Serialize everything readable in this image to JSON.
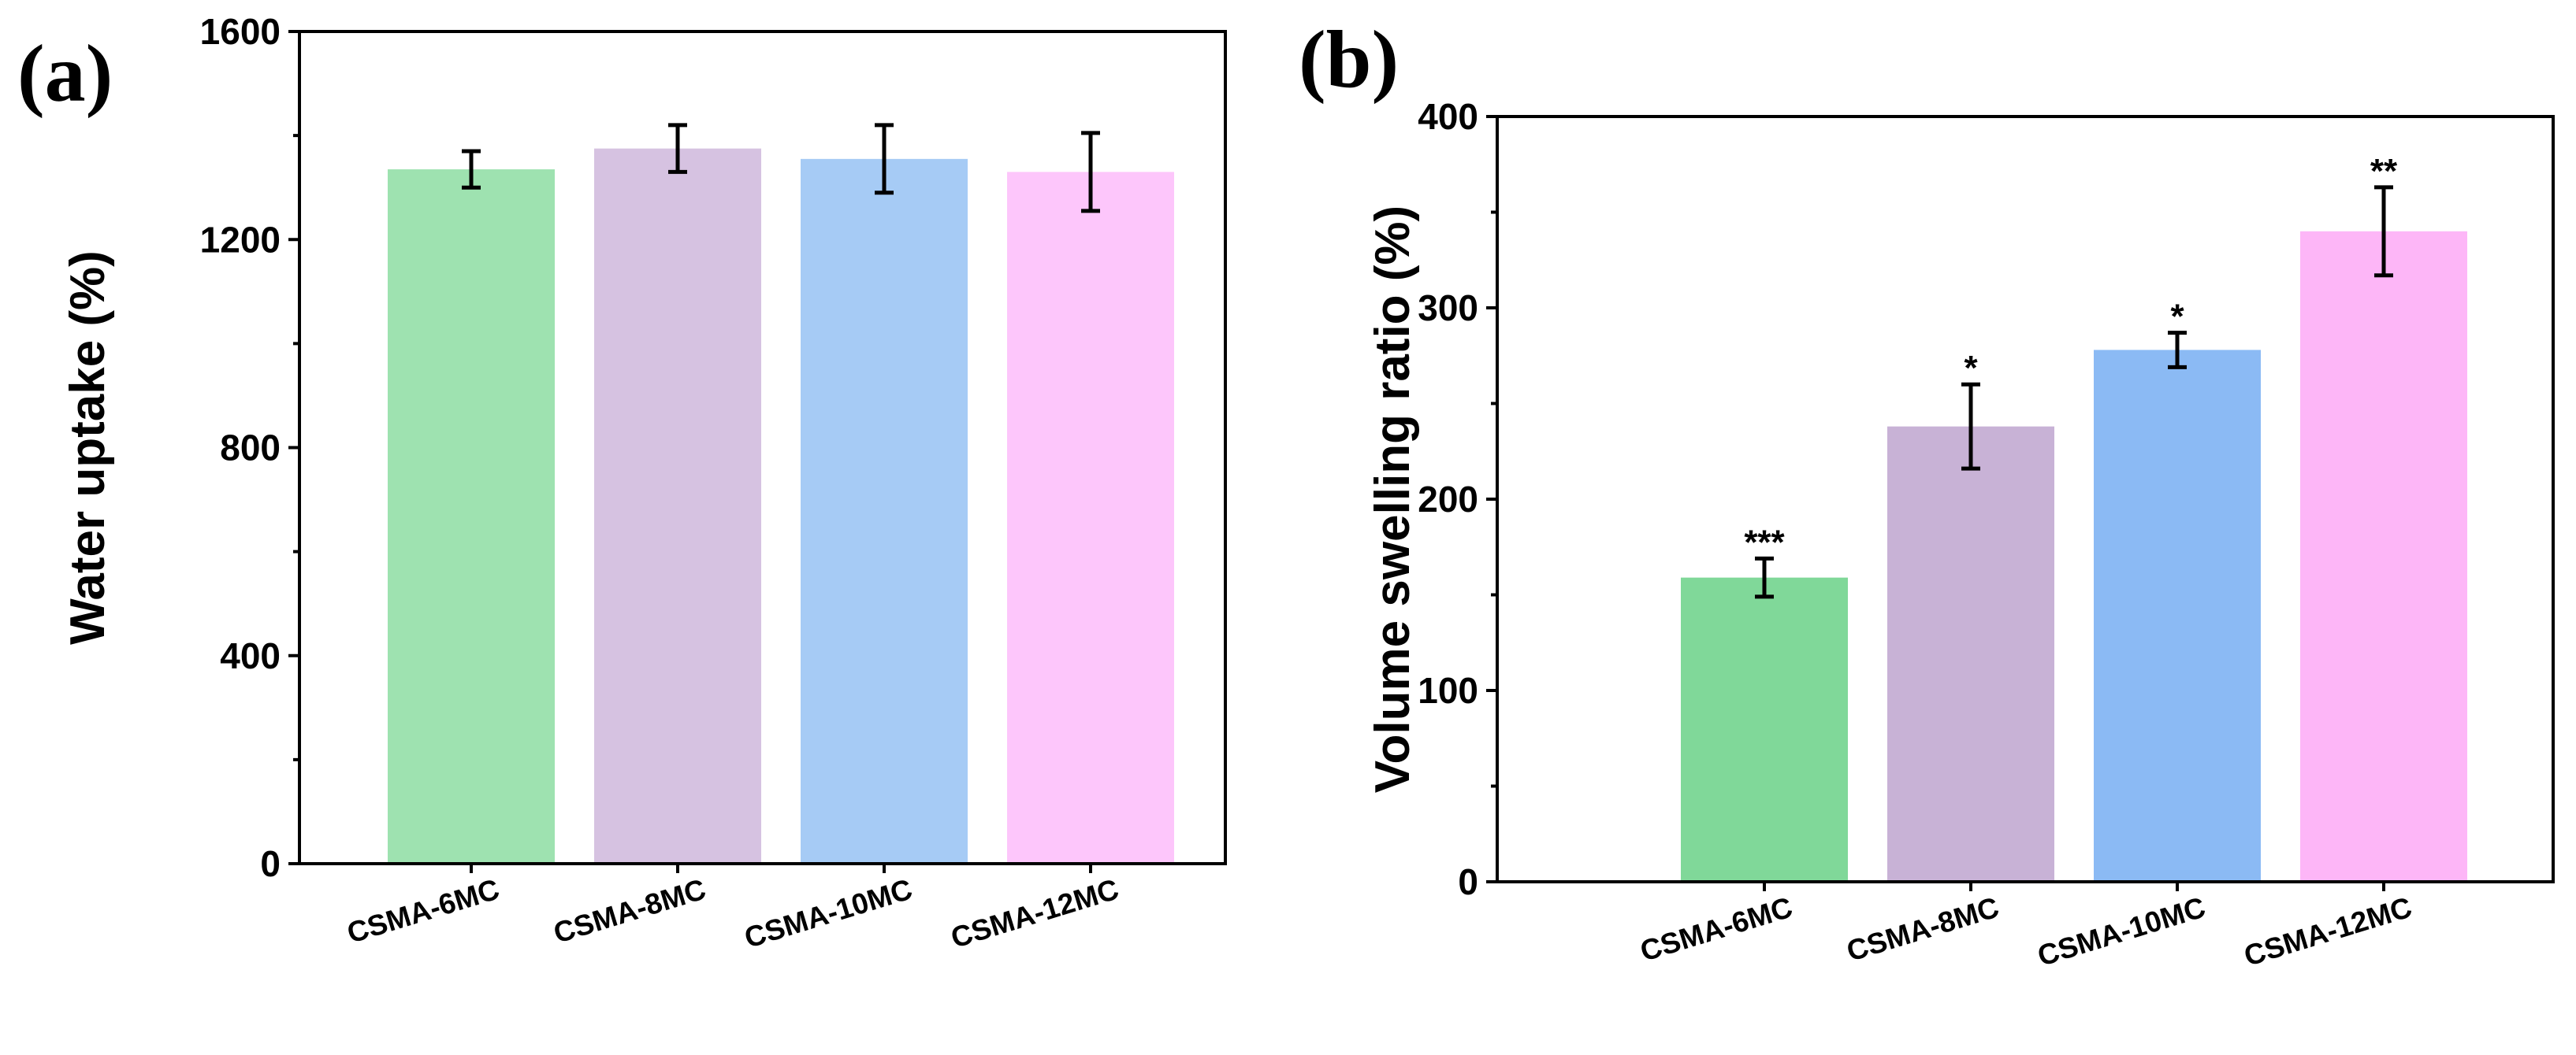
{
  "chart_data": [
    {
      "panel": "(a)",
      "type": "bar",
      "categories": [
        "CSMA-6MC",
        "CSMA-8MC",
        "CSMA-10MC",
        "CSMA-12MC"
      ],
      "values": [
        1335,
        1375,
        1355,
        1330
      ],
      "errors": [
        35,
        45,
        65,
        75
      ],
      "colors": [
        "#9ee2b0",
        "#d6c2e1",
        "#a6cbf5",
        "#fdc6fb"
      ],
      "annotations": [
        "",
        "",
        "",
        ""
      ],
      "xlabel": "",
      "ylabel": "Water uptake (%)",
      "ylim": [
        0,
        1600
      ],
      "yticks": [
        0,
        400,
        800,
        1200,
        1600
      ],
      "tick_labels": [
        "0",
        "400",
        "800",
        "1200",
        "1600"
      ],
      "minor_ticks": true,
      "grid": false
    },
    {
      "panel": "(b)",
      "type": "bar",
      "categories": [
        "CSMA-6MC",
        "CSMA-8MC",
        "CSMA-10MC",
        "CSMA-12MC"
      ],
      "values": [
        159,
        238,
        278,
        340
      ],
      "errors": [
        10,
        22,
        9,
        23
      ],
      "colors": [
        "#80d899",
        "#c8b2d6",
        "#8bbaf4",
        "#fdb6f7"
      ],
      "annotations": [
        "***",
        "*",
        "*",
        "**"
      ],
      "xlabel": "",
      "ylabel": "Volume swelling ratio (%)",
      "ylim": [
        0,
        400
      ],
      "yticks": [
        0,
        100,
        200,
        300,
        400
      ],
      "tick_labels": [
        "0",
        "100",
        "200",
        "300",
        "400"
      ],
      "minor_ticks": true,
      "grid": false
    }
  ]
}
